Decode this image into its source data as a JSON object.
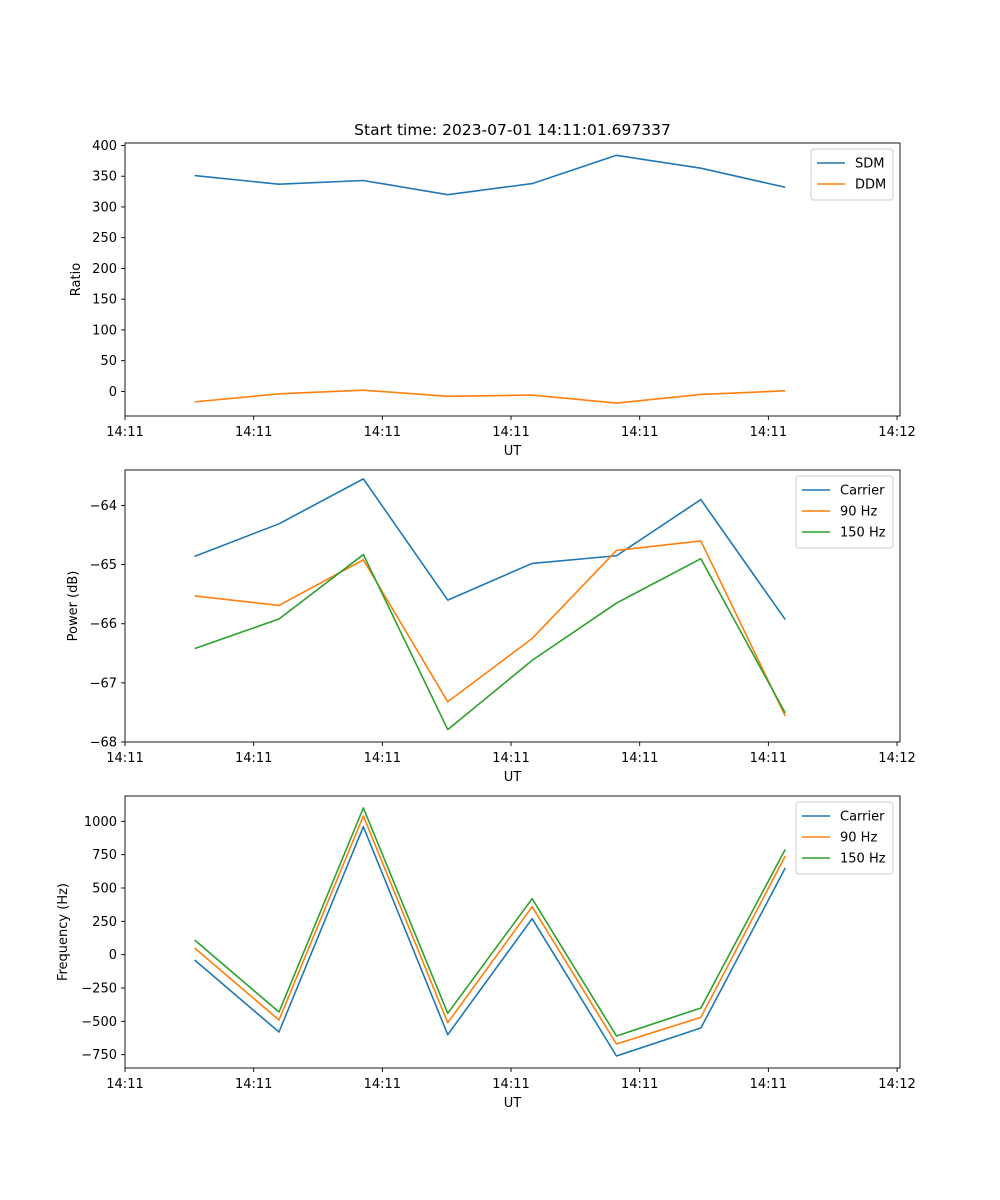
{
  "chart_data": [
    {
      "type": "line",
      "title": "Start time: 2023-07-01 14:11:01.697337",
      "xlabel": "UT",
      "ylabel": "Ratio",
      "x": [
        1,
        2,
        3,
        4,
        5,
        6,
        7,
        8
      ],
      "xlim": [
        0.175,
        9.36
      ],
      "xticks": [
        0.175,
        1.7,
        3.225,
        4.75,
        6.275,
        7.8,
        9.325
      ],
      "xtick_labels": [
        "14:11",
        "14:11",
        "14:11",
        "14:11",
        "14:11",
        "14:11",
        "14:12"
      ],
      "ylim": [
        -40,
        404
      ],
      "yticks": [
        0,
        50,
        100,
        150,
        200,
        250,
        300,
        350,
        400
      ],
      "ytick_labels": [
        "0",
        "50",
        "100",
        "150",
        "200",
        "250",
        "300",
        "350",
        "400"
      ],
      "legend": "top-right",
      "series": [
        {
          "name": "SDM",
          "color": "#1f77b4",
          "values": [
            351,
            337,
            343,
            320,
            338,
            384,
            363,
            332
          ]
        },
        {
          "name": "DDM",
          "color": "#ff7f0e",
          "values": [
            -17,
            -4,
            2,
            -8,
            -6,
            -19,
            -5,
            1
          ]
        }
      ]
    },
    {
      "type": "line",
      "title": "",
      "xlabel": "UT",
      "ylabel": "Power (dB)",
      "x": [
        1,
        2,
        3,
        4,
        5,
        6,
        7,
        8
      ],
      "xlim": [
        0.175,
        9.36
      ],
      "xticks": [
        0.175,
        1.7,
        3.225,
        4.75,
        6.275,
        7.8,
        9.325
      ],
      "xtick_labels": [
        "14:11",
        "14:11",
        "14:11",
        "14:11",
        "14:11",
        "14:11",
        "14:12"
      ],
      "ylim": [
        -68,
        -63.4
      ],
      "yticks": [
        -68,
        -67,
        -66,
        -65,
        -64
      ],
      "ytick_labels": [
        "−68",
        "−67",
        "−66",
        "−65",
        "−64"
      ],
      "legend": "top-right",
      "series": [
        {
          "name": "Carrier",
          "color": "#1f77b4",
          "values": [
            -64.86,
            -64.31,
            -63.55,
            -65.6,
            -64.98,
            -64.85,
            -63.9,
            -65.93
          ]
        },
        {
          "name": "90 Hz",
          "color": "#ff7f0e",
          "values": [
            -65.53,
            -65.69,
            -64.92,
            -67.32,
            -66.25,
            -64.76,
            -64.6,
            -67.56
          ]
        },
        {
          "name": "150 Hz",
          "color": "#2ca02c",
          "values": [
            -66.42,
            -65.92,
            -64.83,
            -67.79,
            -66.62,
            -65.65,
            -64.9,
            -67.51
          ]
        }
      ]
    },
    {
      "type": "line",
      "title": "",
      "xlabel": "UT",
      "ylabel": "Frequency (Hz)",
      "x": [
        1,
        2,
        3,
        4,
        5,
        6,
        7,
        8
      ],
      "xlim": [
        0.175,
        9.36
      ],
      "xticks": [
        0.175,
        1.7,
        3.225,
        4.75,
        6.275,
        7.8,
        9.325
      ],
      "xtick_labels": [
        "14:11",
        "14:11",
        "14:11",
        "14:11",
        "14:11",
        "14:11",
        "14:12"
      ],
      "ylim": [
        -850,
        1190
      ],
      "yticks": [
        -750,
        -500,
        -250,
        0,
        250,
        500,
        750,
        1000
      ],
      "ytick_labels": [
        "−750",
        "−500",
        "−250",
        "0",
        "250",
        "500",
        "750",
        "1000"
      ],
      "legend": "top-right",
      "series": [
        {
          "name": "Carrier",
          "color": "#1f77b4",
          "values": [
            -40,
            -580,
            960,
            -600,
            270,
            -760,
            -550,
            650
          ]
        },
        {
          "name": "90 Hz",
          "color": "#ff7f0e",
          "values": [
            50,
            -490,
            1040,
            -510,
            360,
            -670,
            -470,
            740
          ]
        },
        {
          "name": "150 Hz",
          "color": "#2ca02c",
          "values": [
            110,
            -430,
            1100,
            -440,
            420,
            -610,
            -400,
            790
          ]
        }
      ]
    }
  ]
}
